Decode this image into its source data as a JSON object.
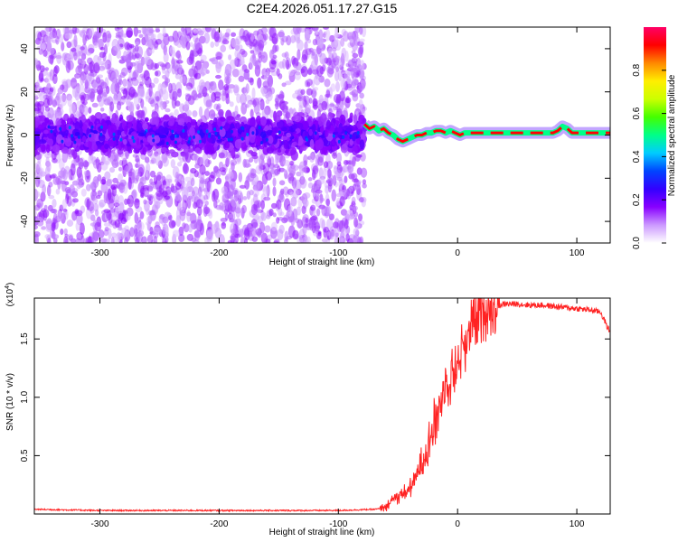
{
  "title": "C2E4.2026.051.17.27.G15",
  "chart_data": [
    {
      "type": "heatmap",
      "xlabel": "Height of straight line (km)",
      "ylabel": "Frequency (Hz)",
      "xlim": [
        -355,
        128
      ],
      "ylim": [
        -50,
        50
      ],
      "xticks": [
        -300,
        -200,
        -100,
        0,
        100
      ],
      "yticks": [
        -40,
        -20,
        0,
        20,
        40
      ],
      "noise_region_end_km": -78,
      "noise_band_halfwidth_hz": 8,
      "center_track": {
        "x": [
          -78,
          -74,
          -70,
          -66,
          -62,
          -58,
          -54,
          -50,
          -46,
          -42,
          -38,
          -34,
          -30,
          -26,
          -22,
          -18,
          -14,
          -10,
          -6,
          -2,
          2,
          6,
          10,
          20,
          40,
          60,
          80,
          84,
          88,
          92,
          96,
          100,
          110,
          128
        ],
        "y": [
          5,
          3,
          4,
          2,
          3,
          1,
          0,
          -2,
          -3,
          -2,
          -1,
          0,
          0,
          1,
          1,
          2,
          2,
          1,
          2,
          1,
          0,
          1,
          1,
          1,
          1,
          1,
          1,
          2,
          4,
          3,
          1,
          1,
          1,
          1
        ]
      },
      "colorbar": {
        "label": "Normalized spectral amplitude",
        "range": [
          0,
          1
        ],
        "ticks": [
          "0.0",
          "0.2",
          "0.4",
          "0.6",
          "0.8"
        ],
        "colors": [
          "#ffffff",
          "#cc99ff",
          "#8800ff",
          "#3300ff",
          "#0044ff",
          "#00ccff",
          "#00ff88",
          "#44ff00",
          "#ccff00",
          "#ffee00",
          "#ff8800",
          "#ff0000",
          "#ff0066"
        ]
      }
    },
    {
      "type": "line",
      "xlabel": "Height of straight line (km)",
      "ylabel": "SNR (10 * v/v)",
      "multiplier_label": "(x10",
      "multiplier_exp": "4",
      "multiplier_close": ")",
      "xlim": [
        -355,
        128
      ],
      "ylim": [
        0,
        1.85
      ],
      "xticks": [
        -300,
        -200,
        -100,
        0,
        100
      ],
      "yticks": [
        0.5,
        1.0,
        1.5
      ],
      "ytick_labels": [
        "0.5",
        "1.0",
        "1.5"
      ],
      "color": "#ff2222",
      "series": [
        {
          "name": "SNR",
          "x": [
            -355,
            -300,
            -200,
            -100,
            -70,
            -60,
            -55,
            -50,
            -45,
            -40,
            -35,
            -30,
            -25,
            -20,
            -15,
            -10,
            -5,
            0,
            5,
            10,
            15,
            20,
            25,
            30,
            40,
            50,
            60,
            70,
            80,
            90,
            100,
            110,
            120,
            128
          ],
          "values": [
            0.04,
            0.03,
            0.03,
            0.03,
            0.04,
            0.05,
            0.12,
            0.15,
            0.18,
            0.22,
            0.3,
            0.45,
            0.6,
            0.75,
            0.95,
            1.1,
            1.2,
            1.3,
            1.45,
            1.55,
            1.65,
            1.72,
            1.76,
            1.78,
            1.8,
            1.8,
            1.79,
            1.79,
            1.78,
            1.77,
            1.76,
            1.75,
            1.73,
            1.55
          ]
        }
      ]
    }
  ]
}
